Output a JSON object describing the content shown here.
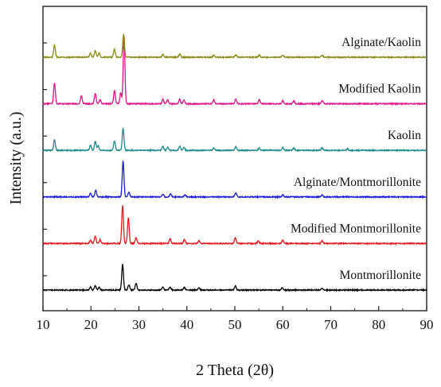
{
  "chart_data": {
    "type": "line",
    "title": "",
    "xlabel": "2 Theta (2θ)",
    "ylabel": "Intensity (a.u.)",
    "xlim": [
      10,
      90
    ],
    "xticks": [
      10,
      20,
      30,
      40,
      50,
      60,
      70,
      80,
      90
    ],
    "grid": false,
    "legend": "labels placed above each trace, right side",
    "series": [
      {
        "name": "Montmorillonite",
        "color": "#000000",
        "baseline": 0,
        "peaks": [
          [
            19.9,
            0.8
          ],
          [
            20.9,
            1.1
          ],
          [
            21.7,
            0.7
          ],
          [
            26.6,
            6.5
          ],
          [
            27.9,
            1.3
          ],
          [
            29.4,
            1.7
          ],
          [
            35.0,
            0.8
          ],
          [
            36.5,
            0.8
          ],
          [
            39.5,
            0.6
          ],
          [
            42.5,
            0.5
          ],
          [
            50.1,
            1.0
          ],
          [
            59.9,
            0.6
          ],
          [
            68.2,
            0.5
          ]
        ]
      },
      {
        "name": "Modified Montmorillonite",
        "color": "#e8191c",
        "baseline": 1,
        "peaks": [
          [
            19.9,
            0.9
          ],
          [
            20.9,
            1.8
          ],
          [
            21.9,
            1.0
          ],
          [
            26.6,
            9.5
          ],
          [
            27.8,
            6.5
          ],
          [
            29.4,
            1.5
          ],
          [
            36.5,
            1.2
          ],
          [
            39.5,
            1.0
          ],
          [
            42.5,
            0.7
          ],
          [
            50.1,
            1.5
          ],
          [
            54.9,
            0.6
          ],
          [
            60.0,
            0.9
          ],
          [
            68.2,
            0.7
          ]
        ]
      },
      {
        "name": "Alginate/Montmorillonite",
        "color": "#1b1bd6",
        "baseline": 2,
        "peaks": [
          [
            19.9,
            0.9
          ],
          [
            21.0,
            1.6
          ],
          [
            26.7,
            9.0
          ],
          [
            27.9,
            1.2
          ],
          [
            35.0,
            0.7
          ],
          [
            36.6,
            0.8
          ],
          [
            39.6,
            0.5
          ],
          [
            50.2,
            1.1
          ],
          [
            60.0,
            0.5
          ],
          [
            68.2,
            0.5
          ]
        ]
      },
      {
        "name": "Kaolin",
        "color": "#1e8c8c",
        "baseline": 3,
        "peaks": [
          [
            12.4,
            2.7
          ],
          [
            19.9,
            1.3
          ],
          [
            20.9,
            2.3
          ],
          [
            21.5,
            1.2
          ],
          [
            24.9,
            2.4
          ],
          [
            26.7,
            5.5
          ],
          [
            35.0,
            1.0
          ],
          [
            36.0,
            0.8
          ],
          [
            38.5,
            1.1
          ],
          [
            39.4,
            0.8
          ],
          [
            45.6,
            0.6
          ],
          [
            50.2,
            0.9
          ],
          [
            55.1,
            0.6
          ],
          [
            60.0,
            0.8
          ],
          [
            62.3,
            0.6
          ],
          [
            68.2,
            0.6
          ],
          [
            73.5,
            0.4
          ]
        ]
      },
      {
        "name": "Modified Kaolin",
        "color": "#e0158c",
        "baseline": 4,
        "peaks": [
          [
            12.4,
            5.3
          ],
          [
            18.0,
            2.0
          ],
          [
            20.9,
            2.7
          ],
          [
            21.9,
            1.0
          ],
          [
            24.9,
            3.3
          ],
          [
            26.2,
            2.8
          ],
          [
            26.9,
            17.0
          ],
          [
            35.0,
            1.1
          ],
          [
            36.0,
            1.0
          ],
          [
            38.5,
            1.2
          ],
          [
            39.4,
            0.9
          ],
          [
            45.6,
            1.0
          ],
          [
            50.2,
            1.1
          ],
          [
            55.1,
            1.0
          ],
          [
            60.0,
            0.8
          ],
          [
            62.3,
            0.7
          ],
          [
            68.2,
            0.8
          ]
        ]
      },
      {
        "name": "Alginate/Kaolin",
        "color": "#8c8c1a",
        "baseline": 5,
        "peaks": [
          [
            12.4,
            3.0
          ],
          [
            19.9,
            1.0
          ],
          [
            20.9,
            1.6
          ],
          [
            21.7,
            1.0
          ],
          [
            24.9,
            2.0
          ],
          [
            26.8,
            5.8
          ],
          [
            35.0,
            0.7
          ],
          [
            38.5,
            0.8
          ],
          [
            45.6,
            0.5
          ],
          [
            50.2,
            0.6
          ],
          [
            55.1,
            0.5
          ],
          [
            60.0,
            0.5
          ],
          [
            68.2,
            0.5
          ]
        ]
      }
    ]
  }
}
